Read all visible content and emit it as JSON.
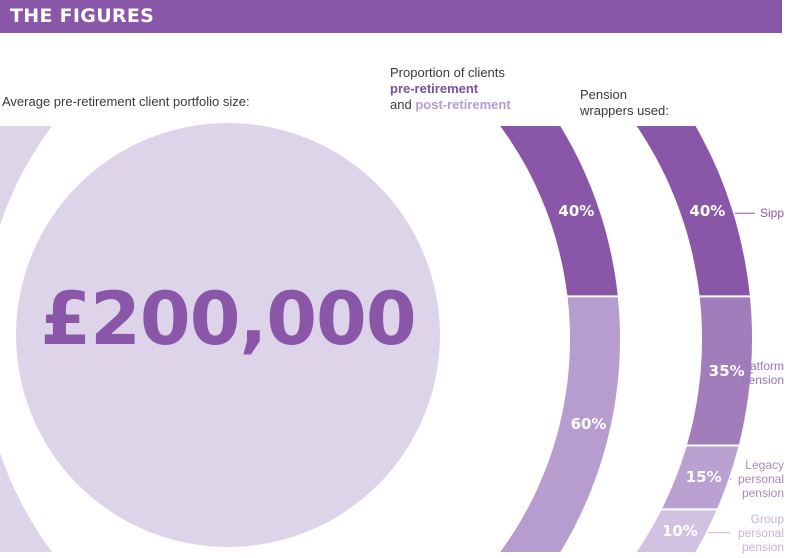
{
  "header": {
    "title": "THE FIGURES",
    "bar_color": "#8a57a8"
  },
  "portfolio": {
    "label": "Average pre-retirement client portfolio size:",
    "value": "£200,000"
  },
  "proportion": {
    "title": "Proportion of clients",
    "pre_label": "pre-retirement",
    "and_text": "and",
    "post_label": "post-retirement"
  },
  "wrappers": {
    "title_line1": "Pension",
    "title_line2": "wrappers used:"
  },
  "chart_data": [
    {
      "type": "pie",
      "title": "Proportion of clients pre-retirement and post-retirement",
      "categories": [
        "pre-retirement",
        "post-retirement"
      ],
      "values": [
        40,
        60
      ],
      "labels": [
        "40%",
        "60%"
      ],
      "colors": [
        "#8a57a8",
        "#b69ccf"
      ]
    },
    {
      "type": "pie",
      "title": "Pension wrappers used",
      "categories": [
        "Sipp",
        "Platform pension",
        "Legacy personal pension",
        "Group personal pension"
      ],
      "category_lines": [
        [
          "Sipp"
        ],
        [
          "Platform",
          "pension"
        ],
        [
          "Legacy",
          "personal",
          "pension"
        ],
        [
          "Group",
          "personal",
          "pension"
        ]
      ],
      "values": [
        40,
        35,
        15,
        10
      ],
      "labels": [
        "40%",
        "35%",
        "15%",
        "10%"
      ],
      "colors": [
        "#8a57a8",
        "#a17ebb",
        "#bba1d2",
        "#d2c1e2"
      ],
      "label_colors": [
        "#8a57a8",
        "#9a74b6",
        "#a88ac2",
        "#c9b4dc"
      ]
    }
  ],
  "colors": {
    "circle_fill": "#ded4ea",
    "text": "#3a3a3a",
    "accent": "#8a57a8"
  }
}
